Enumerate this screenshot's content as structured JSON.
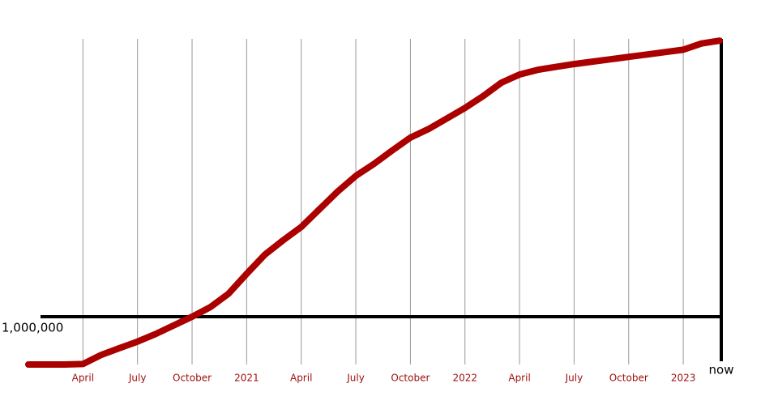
{
  "chart_data": {
    "type": "line",
    "x": [
      "2020-01",
      "2020-02",
      "2020-03",
      "2020-04",
      "2020-05",
      "2020-06",
      "2020-07",
      "2020-08",
      "2020-09",
      "2020-10",
      "2020-11",
      "2020-12",
      "2021-01",
      "2021-02",
      "2021-03",
      "2021-04",
      "2021-05",
      "2021-06",
      "2021-07",
      "2021-08",
      "2021-09",
      "2021-10",
      "2021-11",
      "2021-12",
      "2022-01",
      "2022-02",
      "2022-03",
      "2022-04",
      "2022-05",
      "2022-06",
      "2022-07",
      "2022-08",
      "2022-09",
      "2022-10",
      "2022-11",
      "2022-12",
      "2023-01",
      "2023-02",
      "2023-03"
    ],
    "series": [
      {
        "color": "#aa0000",
        "values": [
          0,
          0,
          0,
          10000,
          200000,
          340000,
          480000,
          640000,
          820000,
          1000000,
          1200000,
          1480000,
          1900000,
          2300000,
          2600000,
          2880000,
          3250000,
          3620000,
          3950000,
          4200000,
          4480000,
          4750000,
          4930000,
          5150000,
          5370000,
          5620000,
          5900000,
          6070000,
          6170000,
          6230000,
          6290000,
          6340000,
          6390000,
          6440000,
          6490000,
          6540000,
          6590000,
          6720000,
          6780000
        ]
      }
    ],
    "xlim": [
      "2020-01",
      "2023-03"
    ],
    "ylim": [
      0,
      6800000
    ],
    "xticks": [
      {
        "value": "2020-04",
        "label": "April"
      },
      {
        "value": "2020-07",
        "label": "July"
      },
      {
        "value": "2020-10",
        "label": "October"
      },
      {
        "value": "2021-01",
        "label": "2021"
      },
      {
        "value": "2021-04",
        "label": "April"
      },
      {
        "value": "2021-07",
        "label": "July"
      },
      {
        "value": "2021-10",
        "label": "October"
      },
      {
        "value": "2022-01",
        "label": "2022"
      },
      {
        "value": "2022-04",
        "label": "April"
      },
      {
        "value": "2022-07",
        "label": "July"
      },
      {
        "value": "2022-10",
        "label": "October"
      },
      {
        "value": "2023-01",
        "label": "2023"
      },
      {
        "value": "2023-03",
        "label": "now"
      }
    ],
    "yticks": [
      {
        "value": 1000000,
        "label": "1,000,000"
      }
    ],
    "grid": true
  }
}
